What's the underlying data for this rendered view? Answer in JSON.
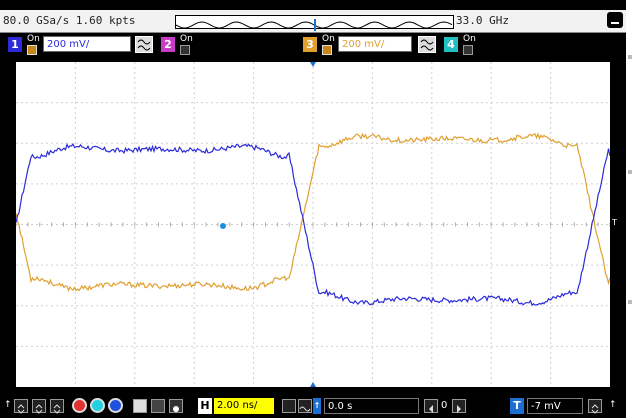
{
  "topbar": {
    "sample_rate": "80.0 GSa/s  1.60 kpts",
    "bandwidth": "33.0 GHz"
  },
  "channels": [
    {
      "number": "1",
      "state": "On",
      "scale": "200 mV/",
      "color": "#2b2bd8",
      "enabled": true
    },
    {
      "number": "2",
      "state": "On",
      "color": "#c83cc8",
      "enabled": false
    },
    {
      "number": "3",
      "state": "On",
      "scale": "200 mV/",
      "color": "#e0a030",
      "enabled": true
    },
    {
      "number": "4",
      "state": "On",
      "color": "#22c0c0",
      "enabled": false
    }
  ],
  "trigger_marker": "T",
  "timebase": {
    "horizontal_letter": "H",
    "scale": "2.00 ns/",
    "position": "0.0 s",
    "delay_nav_value": "0"
  },
  "trigger": {
    "letter": "T",
    "level": "-7 mV"
  },
  "waveform": {
    "period_ns": 19.4,
    "phase_ns": 0,
    "ch1_levels_v": [
      0.37,
      -0.37
    ],
    "ch3_levels_v": [
      0.42,
      -0.3
    ],
    "colors": {
      "ch1": "#2b2bd8",
      "ch3": "#e0a030",
      "grid": "#cfcfcf"
    }
  },
  "colors": {
    "background": "#000000",
    "bar_light": "#f2f2f2",
    "highlight": "#ffff00",
    "ch1": "#2b2bd8",
    "ch3": "#e0a030"
  }
}
